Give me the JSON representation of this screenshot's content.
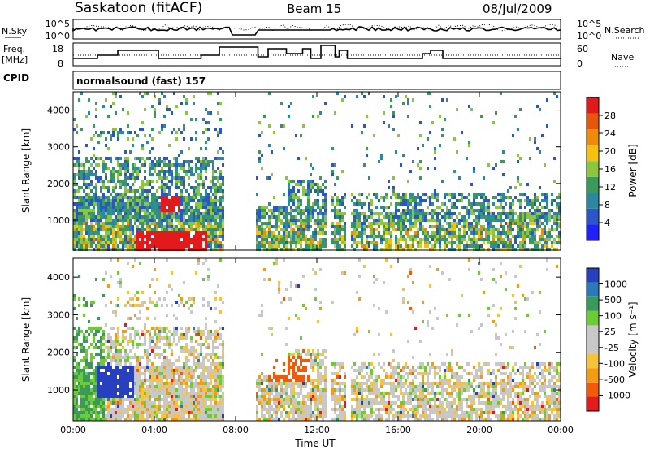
{
  "header": {
    "station": "Saskatoon (fitACF)",
    "beam": "Beam 15",
    "date": "08/Jul/2009"
  },
  "aux": {
    "nsky_label": "N.Sky",
    "nsky_ticks": [
      "10^5",
      "10^0"
    ],
    "nsearch_label": "N.Search",
    "nsearch_ticks": [
      "10^5",
      "10^0"
    ],
    "freq_label_1": "Freq.",
    "freq_label_2": "[MHz]",
    "freq_ticks": [
      "18",
      "8"
    ],
    "nave_label": "Nave",
    "nave_ticks": [
      "60",
      "0"
    ],
    "cpid_label": "CPID",
    "cpid_value": "normalsound (fast) 157"
  },
  "colors": {
    "power": [
      "#1f1fff",
      "#2a56c8",
      "#2b88a0",
      "#3a9a5a",
      "#8cc63f",
      "#f4c20d",
      "#f08a0b",
      "#e8560c",
      "#e31a1c"
    ],
    "velocity": [
      "#e41a1c",
      "#f05a0a",
      "#f39c12",
      "#f7c33c",
      "#c8c8c8",
      "#c8c8c8",
      "#6ccc32",
      "#3a9a5a",
      "#2b7ab8",
      "#2840c0"
    ]
  },
  "chart_data": [
    {
      "type": "heatmap",
      "name": "power",
      "ylabel": "Slant Range [km]",
      "ylim": [
        180,
        4500
      ],
      "xlim": [
        0,
        24
      ],
      "yticks": [
        "4000",
        "3000",
        "2000",
        "1000"
      ],
      "colorbar_label": "Power [dB]",
      "colorbar_ticks": [
        "28",
        "24",
        "20",
        "16",
        "12",
        "8",
        "4"
      ],
      "colorbar_range": [
        0,
        32
      ],
      "x_tick_labels": [
        "00:00",
        "04:00",
        "08:00",
        "12:00",
        "16:00",
        "20:00",
        "00:00"
      ],
      "data_gaps_hours": [
        [
          7.4,
          9.0
        ],
        [
          12.4,
          12.7
        ],
        [
          13.4,
          13.6
        ]
      ]
    },
    {
      "type": "heatmap",
      "name": "velocity",
      "ylabel": "Slant Range [km]",
      "ylim": [
        180,
        4500
      ],
      "xlim": [
        0,
        24
      ],
      "yticks": [
        "4000",
        "3000",
        "2000",
        "1000"
      ],
      "colorbar_label": "Velocity [m s⁻¹]",
      "colorbar_ticks": [
        "1000",
        "500",
        "100",
        "25",
        "-25",
        "-100",
        "-500",
        "-1000"
      ],
      "colorbar_range": [
        -1200,
        1200
      ],
      "x_tick_labels": [
        "00:00",
        "04:00",
        "08:00",
        "12:00",
        "16:00",
        "20:00",
        "00:00"
      ],
      "xlabel": "Time UT"
    }
  ]
}
